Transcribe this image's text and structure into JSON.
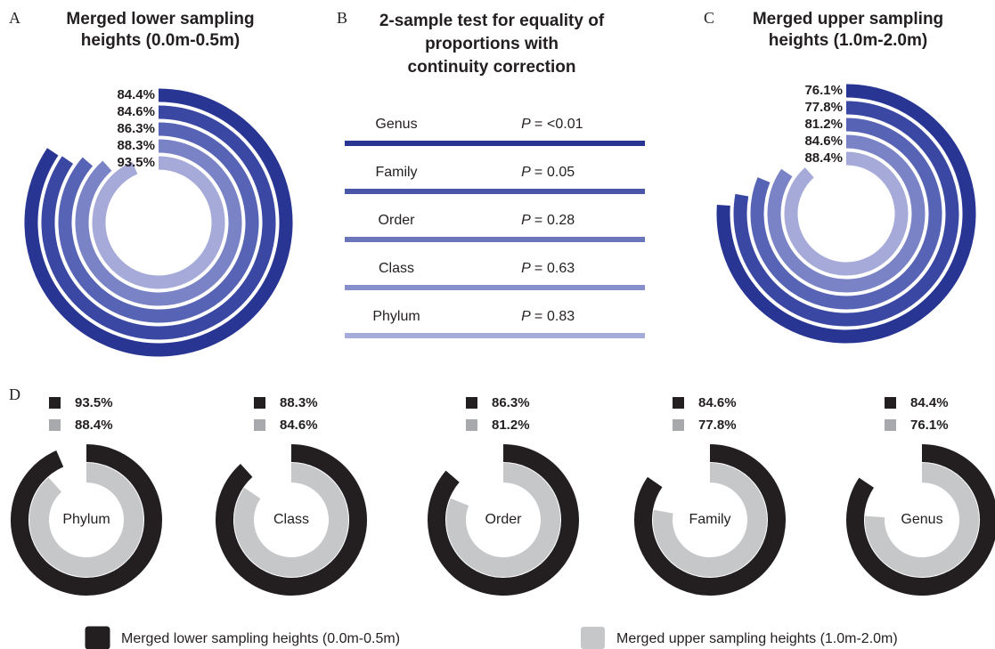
{
  "chart_data": [
    {
      "type": "radial_bar",
      "panel_label": "A",
      "title": [
        "Merged lower sampling",
        "heights (0.0m-0.5m)"
      ],
      "values": [
        84.4,
        84.6,
        86.3,
        88.3,
        93.5
      ],
      "value_labels": [
        "84.4%",
        "84.6%",
        "86.3%",
        "88.3%",
        "93.5%"
      ],
      "colors": [
        "#283593",
        "#3a48a3",
        "#5763b4",
        "#7a83c6",
        "#a5aad8"
      ]
    },
    {
      "type": "table",
      "panel_label": "B",
      "title": [
        "2-sample test for equality of",
        "proportions with",
        "continuity correction"
      ],
      "p_label": "P =",
      "rows": [
        {
          "label": "Genus",
          "p_value": "<0.01",
          "color": "#283593"
        },
        {
          "label": "Family",
          "p_value": 0.05,
          "color": "#4a56a8"
        },
        {
          "label": "Order",
          "p_value": 0.28,
          "color": "#6b75ba"
        },
        {
          "label": "Class",
          "p_value": 0.63,
          "color": "#868fcb"
        },
        {
          "label": "Phylum",
          "p_value": 0.83,
          "color": "#a6acd9"
        }
      ]
    },
    {
      "type": "radial_bar",
      "panel_label": "C",
      "title": [
        "Merged upper sampling",
        "heights (1.0m-2.0m)"
      ],
      "values": [
        76.1,
        77.8,
        81.2,
        84.6,
        88.4
      ],
      "value_labels": [
        "76.1%",
        "77.8%",
        "81.2%",
        "84.6%",
        "88.4%"
      ],
      "colors": [
        "#283593",
        "#3a48a3",
        "#5763b4",
        "#7a83c6",
        "#a5aad8"
      ]
    },
    {
      "type": "nested_donut",
      "panel_label": "D",
      "categories": [
        "Phylum",
        "Class",
        "Order",
        "Family",
        "Genus"
      ],
      "series": [
        {
          "name": "Merged lower sampling heights (0.0m-0.5m)",
          "color": "#231f20",
          "values": [
            93.5,
            88.3,
            86.3,
            84.6,
            84.4
          ],
          "value_labels": [
            "93.5%",
            "88.3%",
            "86.3%",
            "84.6%",
            "84.4%"
          ]
        },
        {
          "name": "Merged upper sampling heights (1.0m-2.0m)",
          "color": "#c6c7c9",
          "values": [
            88.4,
            84.6,
            81.2,
            77.8,
            76.1
          ],
          "value_labels": [
            "88.4%",
            "84.6%",
            "81.2%",
            "77.8%",
            "76.1%"
          ]
        }
      ]
    }
  ]
}
